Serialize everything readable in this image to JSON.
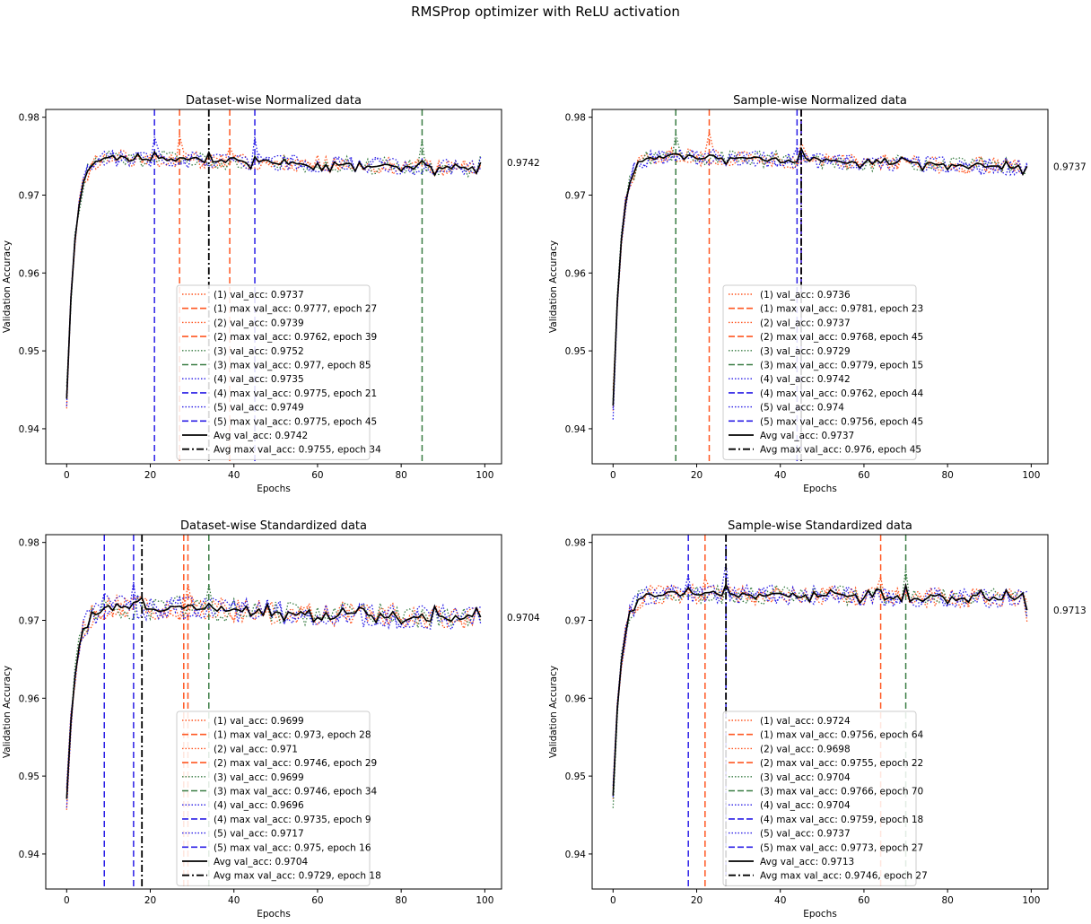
{
  "figure_title": "RMSProp optimizer with ReLU activation",
  "colors": {
    "run1": "#ff5722",
    "run2": "#ff5722",
    "run3": "#3a7d44",
    "run4": "#2a1ee6",
    "run5": "#2a1ee6",
    "avg": "#000000"
  },
  "chart_data": [
    {
      "type": "line",
      "title": "Dataset-wise Normalized data",
      "xlabel": "Epochs",
      "ylabel": "Validation Accuracy",
      "xlim": [
        -5,
        104
      ],
      "ylim": [
        0.9355,
        0.981
      ],
      "xticks": [
        "0",
        "20",
        "40",
        "60",
        "80",
        "100"
      ],
      "yticks": [
        "0.94",
        "0.95",
        "0.96",
        "0.97",
        "0.98"
      ],
      "final_avg_label": "0.9742",
      "runs": [
        {
          "final": 0.9737,
          "max_epoch": 27,
          "max_val": 0.9777
        },
        {
          "final": 0.9739,
          "max_epoch": 39,
          "max_val": 0.9762
        },
        {
          "final": 0.9752,
          "max_epoch": 85,
          "max_val": 0.977
        },
        {
          "final": 0.9735,
          "max_epoch": 21,
          "max_val": 0.9775
        },
        {
          "final": 0.9749,
          "max_epoch": 45,
          "max_val": 0.9775
        }
      ],
      "avg": {
        "final": 0.9742,
        "max_epoch": 34,
        "max_val": 0.9755
      },
      "legend": [
        "(1) val_acc: 0.9737",
        "(1) max val_acc: 0.9777, epoch 27",
        "(2) val_acc: 0.9739",
        "(2) max val_acc: 0.9762, epoch 39",
        "(3) val_acc: 0.9752",
        "(3) max val_acc: 0.977, epoch 85",
        "(4) val_acc: 0.9735",
        "(4) max val_acc: 0.9775, epoch 21",
        "(5) val_acc: 0.9749",
        "(5) max val_acc: 0.9775, epoch 45",
        "Avg val_acc: 0.9742",
        "Avg max val_acc: 0.9755, epoch 34"
      ]
    },
    {
      "type": "line",
      "title": "Sample-wise Normalized data",
      "xlabel": "Epochs",
      "ylabel": "Validation Accuracy",
      "xlim": [
        -5,
        104
      ],
      "ylim": [
        0.9355,
        0.981
      ],
      "xticks": [
        "0",
        "20",
        "40",
        "60",
        "80",
        "100"
      ],
      "yticks": [
        "0.94",
        "0.95",
        "0.96",
        "0.97",
        "0.98"
      ],
      "final_avg_label": "0.9737",
      "runs": [
        {
          "final": 0.9736,
          "max_epoch": 23,
          "max_val": 0.9781
        },
        {
          "final": 0.9737,
          "max_epoch": 45,
          "max_val": 0.9768
        },
        {
          "final": 0.9729,
          "max_epoch": 15,
          "max_val": 0.9779
        },
        {
          "final": 0.9742,
          "max_epoch": 44,
          "max_val": 0.9762
        },
        {
          "final": 0.974,
          "max_epoch": 45,
          "max_val": 0.9756
        }
      ],
      "avg": {
        "final": 0.9737,
        "max_epoch": 45,
        "max_val": 0.976
      },
      "legend": [
        "(1) val_acc: 0.9736",
        "(1) max val_acc: 0.9781, epoch 23",
        "(2) val_acc: 0.9737",
        "(2) max val_acc: 0.9768, epoch 45",
        "(3) val_acc: 0.9729",
        "(3) max val_acc: 0.9779, epoch 15",
        "(4) val_acc: 0.9742",
        "(4) max val_acc: 0.9762, epoch 44",
        "(5) val_acc: 0.974",
        "(5) max val_acc: 0.9756, epoch 45",
        "Avg val_acc: 0.9737",
        "Avg max val_acc: 0.976, epoch 45"
      ]
    },
    {
      "type": "line",
      "title": "Dataset-wise Standardized data",
      "xlabel": "Epochs",
      "ylabel": "Validation Accuracy",
      "xlim": [
        -5,
        104
      ],
      "ylim": [
        0.9355,
        0.981
      ],
      "xticks": [
        "0",
        "20",
        "40",
        "60",
        "80",
        "100"
      ],
      "yticks": [
        "0.94",
        "0.95",
        "0.96",
        "0.97",
        "0.98"
      ],
      "final_avg_label": "0.9704",
      "runs": [
        {
          "final": 0.9699,
          "max_epoch": 28,
          "max_val": 0.973
        },
        {
          "final": 0.971,
          "max_epoch": 29,
          "max_val": 0.9746
        },
        {
          "final": 0.9699,
          "max_epoch": 34,
          "max_val": 0.9746
        },
        {
          "final": 0.9696,
          "max_epoch": 9,
          "max_val": 0.9735
        },
        {
          "final": 0.9717,
          "max_epoch": 16,
          "max_val": 0.975
        }
      ],
      "avg": {
        "final": 0.9704,
        "max_epoch": 18,
        "max_val": 0.9729
      },
      "legend": [
        "(1) val_acc: 0.9699",
        "(1) max val_acc: 0.973, epoch 28",
        "(2) val_acc: 0.971",
        "(2) max val_acc: 0.9746, epoch 29",
        "(3) val_acc: 0.9699",
        "(3) max val_acc: 0.9746, epoch 34",
        "(4) val_acc: 0.9696",
        "(4) max val_acc: 0.9735, epoch 9",
        "(5) val_acc: 0.9717",
        "(5) max val_acc: 0.975, epoch 16",
        "Avg val_acc: 0.9704",
        "Avg max val_acc: 0.9729, epoch 18"
      ]
    },
    {
      "type": "line",
      "title": "Sample-wise Standardized data",
      "xlabel": "Epochs",
      "ylabel": "Validation Accuracy",
      "xlim": [
        -5,
        104
      ],
      "ylim": [
        0.9355,
        0.981
      ],
      "xticks": [
        "0",
        "20",
        "40",
        "60",
        "80",
        "100"
      ],
      "yticks": [
        "0.94",
        "0.95",
        "0.96",
        "0.97",
        "0.98"
      ],
      "final_avg_label": "0.9713",
      "runs": [
        {
          "final": 0.9724,
          "max_epoch": 64,
          "max_val": 0.9756
        },
        {
          "final": 0.9698,
          "max_epoch": 22,
          "max_val": 0.9755
        },
        {
          "final": 0.9704,
          "max_epoch": 70,
          "max_val": 0.9766
        },
        {
          "final": 0.9704,
          "max_epoch": 18,
          "max_val": 0.9759
        },
        {
          "final": 0.9737,
          "max_epoch": 27,
          "max_val": 0.9773
        }
      ],
      "avg": {
        "final": 0.9713,
        "max_epoch": 27,
        "max_val": 0.9746
      },
      "legend": [
        "(1) val_acc: 0.9724",
        "(1) max val_acc: 0.9756, epoch 64",
        "(2) val_acc: 0.9698",
        "(2) max val_acc: 0.9755, epoch 22",
        "(3) val_acc: 0.9704",
        "(3) max val_acc: 0.9766, epoch 70",
        "(4) val_acc: 0.9704",
        "(4) max val_acc: 0.9759, epoch 18",
        "(5) val_acc: 0.9737",
        "(5) max val_acc: 0.9773, epoch 27",
        "Avg val_acc: 0.9713",
        "Avg max val_acc: 0.9746, epoch 27"
      ]
    }
  ]
}
